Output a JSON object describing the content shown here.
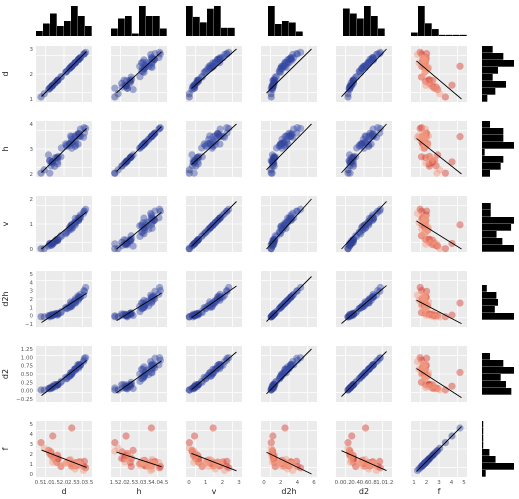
{
  "chart_data": {
    "type": "scatter",
    "variables": [
      "d",
      "h",
      "v",
      "d2h",
      "d2",
      "f"
    ],
    "axis_ranges": {
      "d": [
        0.5,
        3.5
      ],
      "h": [
        1.5,
        4.5
      ],
      "v": [
        0,
        3
      ],
      "d2h": [
        -1,
        6
      ],
      "d2": [
        -0.25,
        1.25
      ],
      "f": [
        0,
        5
      ]
    },
    "x_tick_labels": {
      "d": [
        "0.5",
        "1.0",
        "1.5",
        "2.0",
        "2.5",
        "3.0",
        "3.5"
      ],
      "h": [
        "1.5",
        "2.0",
        "2.5",
        "3.0",
        "3.5",
        "4.0",
        "4.5"
      ],
      "v": [
        "0",
        "1",
        "2",
        "3"
      ],
      "d2h": [
        "0",
        "2",
        "4",
        "6"
      ],
      "d2": [
        "0.0",
        "0.2",
        "0.4",
        "0.6",
        "0.8",
        "1.0",
        "1.2"
      ],
      "f": [
        "1",
        "2",
        "3",
        "4",
        "5"
      ]
    },
    "y_tick_labels": {
      "d": [
        "1",
        "2",
        "3"
      ],
      "h": [
        "2",
        "3",
        "4"
      ],
      "v": [
        "0",
        "1",
        "2"
      ],
      "d2h": [
        "−1",
        "0",
        "1",
        "2",
        "3",
        "4",
        "5"
      ],
      "d2": [
        "−0.25",
        "0.00",
        "0.25",
        "0.50",
        "0.75",
        "1.00",
        "1.25"
      ],
      "f": [
        "0",
        "1",
        "2",
        "3",
        "4",
        "5"
      ]
    },
    "grid": true,
    "regression_lines": true,
    "marginal_histograms": "top and right",
    "colors": {
      "blue_points": "#3a4ea8",
      "red_points": "#e05040",
      "histogram": "#000000",
      "line": "#000000",
      "panel_bg": "#ebebeb"
    }
  }
}
